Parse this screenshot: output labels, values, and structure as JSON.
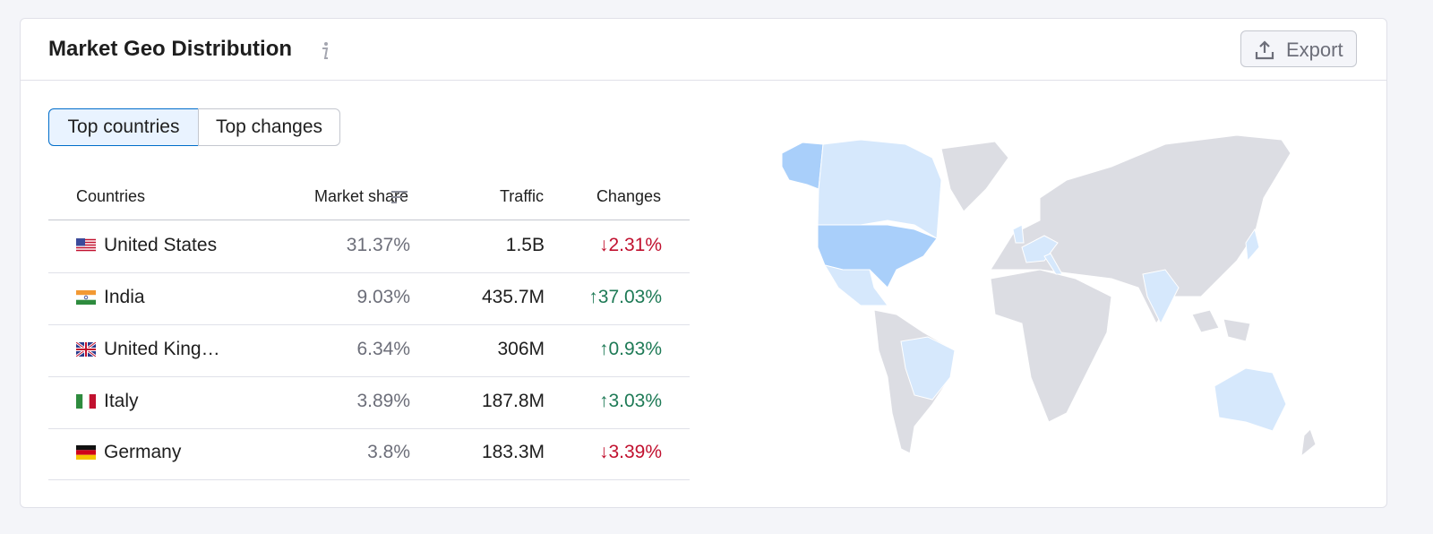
{
  "header": {
    "title": "Market Geo Distribution",
    "export_button": "Export"
  },
  "tabs": [
    "Top countries",
    "Top changes"
  ],
  "table": {
    "columns": [
      "Countries",
      "Market share",
      "Traffic",
      "Changes"
    ],
    "rows": [
      [
        "United States",
        "31.37%",
        "1.5B",
        "2.31%"
      ],
      [
        "India",
        "9.03%",
        "435.7M",
        "37.03%"
      ],
      [
        "United King…",
        "6.34%",
        "306M",
        "0.93%"
      ],
      [
        "Italy",
        "3.89%",
        "187.8M",
        "3.03%"
      ],
      [
        "Germany",
        "3.8%",
        "183.3M",
        "3.39%"
      ]
    ]
  }
}
